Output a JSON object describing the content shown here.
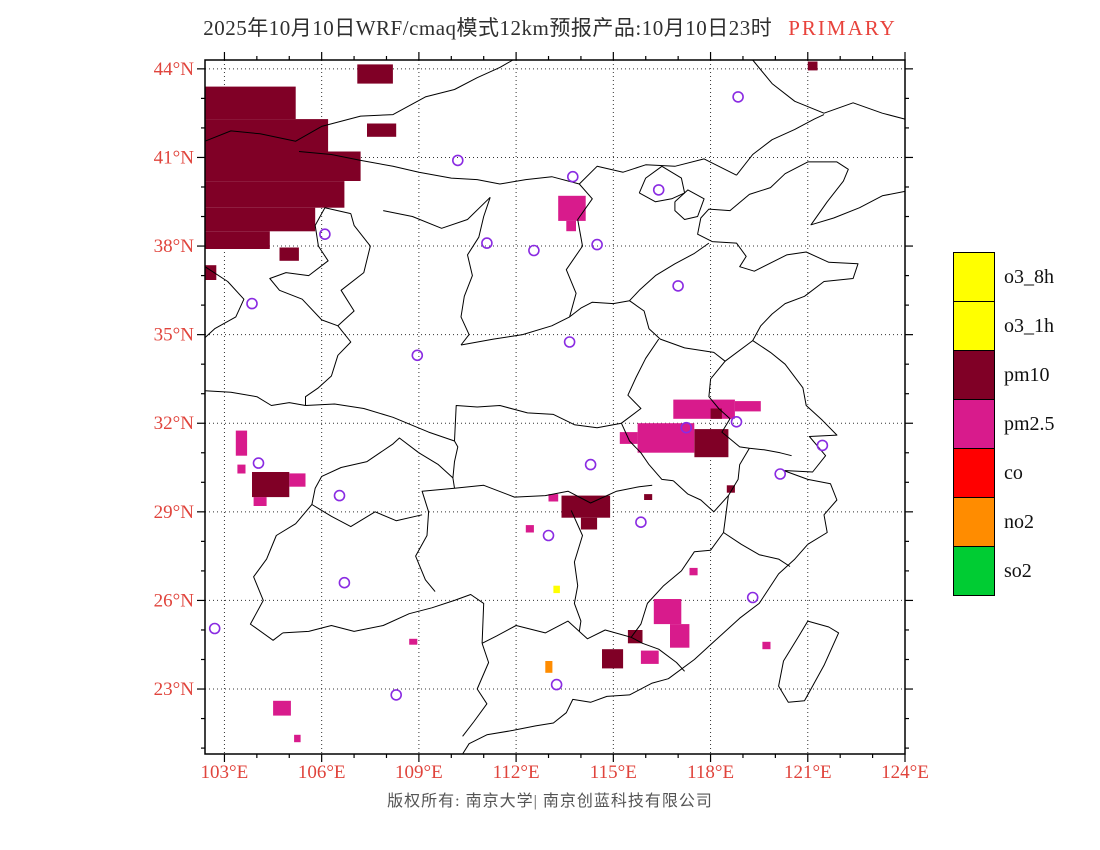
{
  "header": {
    "title": "2025年10月10日WRF/cmaq模式12km预报产品:10月10日23时",
    "badge": "PRIMARY"
  },
  "legend": {
    "items": [
      {
        "label": "o3_8h",
        "color": "#ffff00"
      },
      {
        "label": "o3_1h",
        "color": "#ffff00"
      },
      {
        "label": "pm10",
        "color": "#800026"
      },
      {
        "label": "pm2.5",
        "color": "#d81b8c"
      },
      {
        "label": "co",
        "color": "#ff0000"
      },
      {
        "label": "no2",
        "color": "#ff8c00"
      },
      {
        "label": "so2",
        "color": "#00cc33"
      }
    ]
  },
  "map": {
    "lon_ticks": [
      {
        "value": 103,
        "label": "103°E"
      },
      {
        "value": 106,
        "label": "106°E"
      },
      {
        "value": 109,
        "label": "109°E"
      },
      {
        "value": 112,
        "label": "112°E"
      },
      {
        "value": 115,
        "label": "115°E"
      },
      {
        "value": 118,
        "label": "118°E"
      },
      {
        "value": 121,
        "label": "121°E"
      },
      {
        "value": 124,
        "label": "124°E"
      }
    ],
    "lat_ticks": [
      {
        "value": 44,
        "label": "44°N"
      },
      {
        "value": 41,
        "label": "41°N"
      },
      {
        "value": 38,
        "label": "38°N"
      },
      {
        "value": 35,
        "label": "35°N"
      },
      {
        "value": 32,
        "label": "32°N"
      },
      {
        "value": 29,
        "label": "29°N"
      },
      {
        "value": 26,
        "label": "26°N"
      },
      {
        "value": 23,
        "label": "23°N"
      }
    ],
    "stations": [
      [
        118.85,
        43.05
      ],
      [
        110.2,
        40.9
      ],
      [
        113.75,
        40.35
      ],
      [
        116.4,
        39.9
      ],
      [
        106.1,
        38.4
      ],
      [
        111.1,
        38.1
      ],
      [
        112.55,
        37.85
      ],
      [
        114.5,
        38.05
      ],
      [
        117.0,
        36.65
      ],
      [
        103.85,
        36.05
      ],
      [
        108.95,
        34.3
      ],
      [
        113.65,
        34.75
      ],
      [
        114.3,
        30.6
      ],
      [
        117.25,
        31.85
      ],
      [
        118.8,
        32.05
      ],
      [
        121.45,
        31.25
      ],
      [
        120.15,
        30.28
      ],
      [
        104.05,
        30.65
      ],
      [
        106.55,
        29.55
      ],
      [
        106.7,
        26.6
      ],
      [
        113.0,
        28.2
      ],
      [
        115.85,
        28.65
      ],
      [
        119.3,
        26.1
      ],
      [
        113.25,
        23.15
      ],
      [
        108.3,
        22.8
      ],
      [
        102.7,
        25.05
      ]
    ],
    "cells": [
      [
        "o3_1h",
        113.15,
        113.35,
        26.25,
        26.5
      ],
      [
        "no2",
        112.9,
        113.12,
        23.55,
        23.95
      ],
      [
        "pm2.5",
        113.3,
        114.15,
        38.85,
        39.7
      ],
      [
        "pm2.5",
        113.55,
        113.85,
        38.5,
        38.85
      ],
      [
        "pm2.5",
        116.85,
        118.75,
        32.15,
        32.8
      ],
      [
        "pm2.5",
        118.75,
        119.55,
        32.4,
        32.75
      ],
      [
        "pm2.5",
        115.75,
        117.5,
        31.0,
        32.0
      ],
      [
        "pm2.5",
        115.2,
        115.75,
        31.3,
        31.7
      ],
      [
        "pm2.5",
        103.35,
        103.7,
        30.9,
        31.75
      ],
      [
        "pm2.5",
        103.4,
        103.65,
        30.3,
        30.6
      ],
      [
        "pm2.5",
        105.0,
        105.5,
        29.85,
        30.3
      ],
      [
        "pm2.5",
        103.9,
        104.3,
        29.2,
        29.5
      ],
      [
        "pm2.5",
        116.25,
        117.1,
        25.2,
        26.05
      ],
      [
        "pm2.5",
        116.75,
        117.35,
        24.4,
        25.2
      ],
      [
        "pm2.5",
        115.85,
        116.4,
        23.85,
        24.3
      ],
      [
        "pm2.5",
        104.5,
        105.05,
        22.1,
        22.6
      ],
      [
        "pm2.5",
        105.15,
        105.35,
        21.2,
        21.45
      ],
      [
        "pm2.5",
        112.3,
        112.55,
        28.3,
        28.55
      ],
      [
        "pm2.5",
        108.7,
        108.95,
        24.5,
        24.7
      ],
      [
        "pm2.5",
        117.35,
        117.6,
        26.85,
        27.1
      ],
      [
        "pm2.5",
        119.6,
        119.85,
        24.35,
        24.6
      ],
      [
        "pm2.5",
        113.0,
        113.3,
        29.35,
        29.6
      ],
      [
        "pm10",
        102.4,
        105.2,
        42.3,
        43.4
      ],
      [
        "pm10",
        102.4,
        106.2,
        41.2,
        42.3
      ],
      [
        "pm10",
        102.4,
        107.2,
        40.2,
        41.2
      ],
      [
        "pm10",
        102.4,
        106.7,
        39.3,
        40.2
      ],
      [
        "pm10",
        102.4,
        105.8,
        38.5,
        39.3
      ],
      [
        "pm10",
        102.4,
        104.4,
        37.9,
        38.5
      ],
      [
        "pm10",
        107.1,
        108.2,
        43.5,
        44.15
      ],
      [
        "pm10",
        107.4,
        108.3,
        41.7,
        42.15
      ],
      [
        "pm10",
        104.7,
        105.3,
        37.5,
        37.95
      ],
      [
        "pm10",
        102.4,
        102.75,
        36.85,
        37.35
      ],
      [
        "pm10",
        121.0,
        121.3,
        43.95,
        44.25
      ],
      [
        "pm10",
        103.85,
        105.0,
        29.5,
        30.35
      ],
      [
        "pm10",
        113.4,
        114.9,
        28.8,
        29.55
      ],
      [
        "pm10",
        114.0,
        114.5,
        28.4,
        28.8
      ],
      [
        "pm10",
        117.5,
        118.55,
        30.85,
        31.8
      ],
      [
        "pm10",
        118.0,
        118.35,
        32.15,
        32.5
      ],
      [
        "pm10",
        115.95,
        116.2,
        29.4,
        29.6
      ],
      [
        "pm10",
        118.5,
        118.75,
        29.65,
        29.9
      ],
      [
        "pm10",
        114.65,
        115.3,
        23.7,
        24.35
      ],
      [
        "pm10",
        115.45,
        115.9,
        24.55,
        25.0
      ]
    ]
  },
  "footer": {
    "copyright": "版权所有: 南京大学| 南京创蓝科技有限公司"
  },
  "colors": {
    "axis_label": "#e0443c",
    "title_text": "#2f2f2f",
    "badge": "#e8433c",
    "station": "#8a2be2",
    "grid": "#333333",
    "boundary": "#000000",
    "footer_text": "#555555"
  }
}
